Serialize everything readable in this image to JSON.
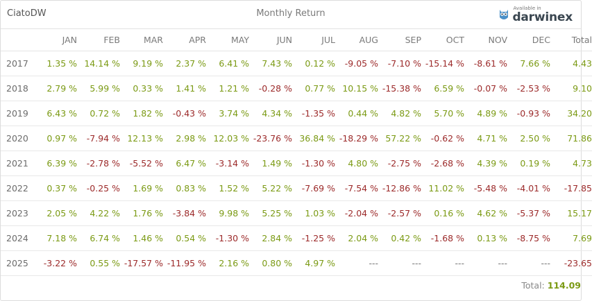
{
  "header": {
    "name": "CiatoDW",
    "title": "Monthly Return",
    "brand_available": "Available in",
    "brand_name": "darwinex"
  },
  "columns": [
    "",
    "JAN",
    "FEB",
    "MAR",
    "APR",
    "MAY",
    "JUN",
    "JUL",
    "AUG",
    "SEP",
    "OCT",
    "NOV",
    "DEC",
    "Total"
  ],
  "rows": [
    {
      "year": "2017",
      "cells": [
        "1.35 %",
        "14.14 %",
        "9.19 %",
        "2.37 %",
        "6.41 %",
        "7.43 %",
        "0.12 %",
        "-9.05 %",
        "-7.10 %",
        "-15.14 %",
        "-8.61 %",
        "7.66 %",
        "4.43"
      ]
    },
    {
      "year": "2018",
      "cells": [
        "2.79 %",
        "5.99 %",
        "0.33 %",
        "1.41 %",
        "1.21 %",
        "-0.28 %",
        "0.77 %",
        "10.15 %",
        "-15.38 %",
        "6.59 %",
        "-0.07 %",
        "-2.53 %",
        "9.10"
      ]
    },
    {
      "year": "2019",
      "cells": [
        "6.43 %",
        "0.72 %",
        "1.82 %",
        "-0.43 %",
        "3.74 %",
        "4.34 %",
        "-1.35 %",
        "0.44 %",
        "4.82 %",
        "5.70 %",
        "4.89 %",
        "-0.93 %",
        "34.20"
      ]
    },
    {
      "year": "2020",
      "cells": [
        "0.97 %",
        "-7.94 %",
        "12.13 %",
        "2.98 %",
        "12.03 %",
        "-23.76 %",
        "36.84 %",
        "-18.29 %",
        "57.22 %",
        "-0.62 %",
        "4.71 %",
        "2.50 %",
        "71.86"
      ]
    },
    {
      "year": "2021",
      "cells": [
        "6.39 %",
        "-2.78 %",
        "-5.52 %",
        "6.47 %",
        "-3.14 %",
        "1.49 %",
        "-1.30 %",
        "4.80 %",
        "-2.75 %",
        "-2.68 %",
        "4.39 %",
        "0.19 %",
        "4.73"
      ]
    },
    {
      "year": "2022",
      "cells": [
        "0.37 %",
        "-0.25 %",
        "1.69 %",
        "0.83 %",
        "1.52 %",
        "5.22 %",
        "-7.69 %",
        "-7.54 %",
        "-12.86 %",
        "11.02 %",
        "-5.48 %",
        "-4.01 %",
        "-17.85"
      ]
    },
    {
      "year": "2023",
      "cells": [
        "2.05 %",
        "4.22 %",
        "1.76 %",
        "-3.84 %",
        "9.98 %",
        "5.25 %",
        "1.03 %",
        "-2.04 %",
        "-2.57 %",
        "0.16 %",
        "4.62 %",
        "-5.37 %",
        "15.17"
      ]
    },
    {
      "year": "2024",
      "cells": [
        "7.18 %",
        "6.74 %",
        "1.46 %",
        "0.54 %",
        "-1.30 %",
        "2.84 %",
        "-1.25 %",
        "2.04 %",
        "0.42 %",
        "-1.68 %",
        "0.13 %",
        "-8.75 %",
        "7.69"
      ]
    },
    {
      "year": "2025",
      "cells": [
        "-3.22 %",
        "0.55 %",
        "-17.57 %",
        "-11.95 %",
        "2.16 %",
        "0.80 %",
        "4.97 %",
        "---",
        "---",
        "---",
        "---",
        "---",
        "-23.65"
      ]
    }
  ],
  "total": {
    "label": "Total:",
    "value": "114.09"
  },
  "colors": {
    "positive": "#7b9a14",
    "negative": "#9c2a2a"
  }
}
